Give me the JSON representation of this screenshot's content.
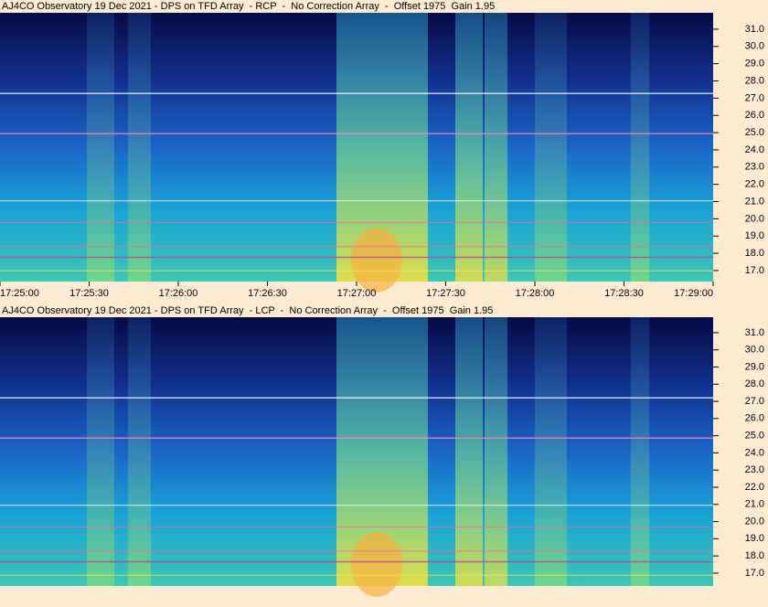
{
  "chart_data": [
    {
      "type": "spectrogram",
      "title": "AJ4CO Observatory 19 Dec 2021 - DPS on TFD Array  - RCP  -  No Correction Array  -  Offset 1975  Gain 1.95",
      "categories": [
        "17:25:00",
        "17:25:30",
        "17:26:00",
        "17:26:30",
        "17:27:00",
        "17:27:30",
        "17:28:00",
        "17:28:30",
        "17:29:00"
      ],
      "ylim": [
        16.36,
        31.95
      ],
      "yticks": [
        {
          "value": 17,
          "label": "17.0"
        },
        {
          "value": 18,
          "label": "18.0"
        },
        {
          "value": 19,
          "label": "19.0"
        },
        {
          "value": 20,
          "label": "20.0"
        },
        {
          "value": 21,
          "label": "21.0"
        },
        {
          "value": 22,
          "label": "22.0"
        },
        {
          "value": 23,
          "label": "23.0"
        },
        {
          "value": 24,
          "label": "24.0"
        },
        {
          "value": 25,
          "label": "25.0"
        },
        {
          "value": 26,
          "label": "26.0"
        },
        {
          "value": 27,
          "label": "27.0"
        },
        {
          "value": 28,
          "label": "28.0"
        },
        {
          "value": 29,
          "label": "29.0"
        },
        {
          "value": 30,
          "label": "30.0"
        },
        {
          "value": 31,
          "label": "31.0"
        }
      ]
    },
    {
      "type": "spectrogram",
      "title": "AJ4CO Observatory 19 Dec 2021 - DPS on TFD Array  - LCP  -  No Correction Array  -  Offset 1975  Gain 1.95",
      "ylim": [
        16.25,
        31.9
      ],
      "yticks": [
        {
          "value": 17,
          "label": "17.0"
        },
        {
          "value": 18,
          "label": "18.0"
        },
        {
          "value": 19,
          "label": "19.0"
        },
        {
          "value": 20,
          "label": "20.0"
        },
        {
          "value": 21,
          "label": "21.0"
        },
        {
          "value": 22,
          "label": "22.0"
        },
        {
          "value": 23,
          "label": "23.0"
        },
        {
          "value": 24,
          "label": "24.0"
        },
        {
          "value": 25,
          "label": "25.0"
        },
        {
          "value": 26,
          "label": "26.0"
        },
        {
          "value": 27,
          "label": "27.0"
        },
        {
          "value": 28,
          "label": "28.0"
        },
        {
          "value": 29,
          "label": "29.0"
        },
        {
          "value": 30,
          "label": "30.0"
        },
        {
          "value": 31,
          "label": "31.0"
        }
      ]
    }
  ]
}
